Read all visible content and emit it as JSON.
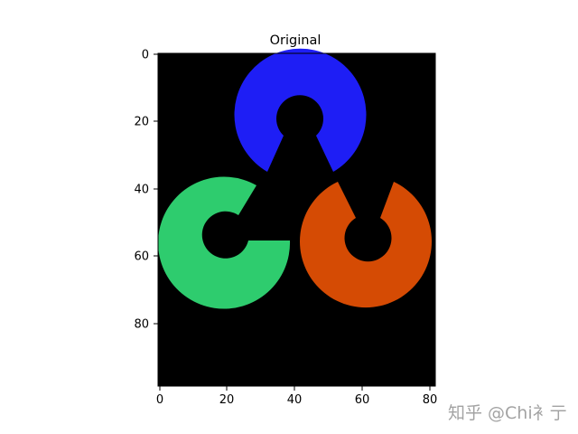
{
  "figure": {
    "title": "Original",
    "x_ticks": [
      "0",
      "20",
      "40",
      "60",
      "80"
    ],
    "y_ticks": [
      "0",
      "20",
      "40",
      "60",
      "80"
    ],
    "background_color": "#000000",
    "frame_color": "#000000"
  },
  "image": {
    "description_colors": {
      "blue": "#1e1ef5",
      "green": "#2ecc6e",
      "orange": "#d54b04"
    }
  },
  "watermark": {
    "text": "知乎 @Chi衤亍"
  }
}
